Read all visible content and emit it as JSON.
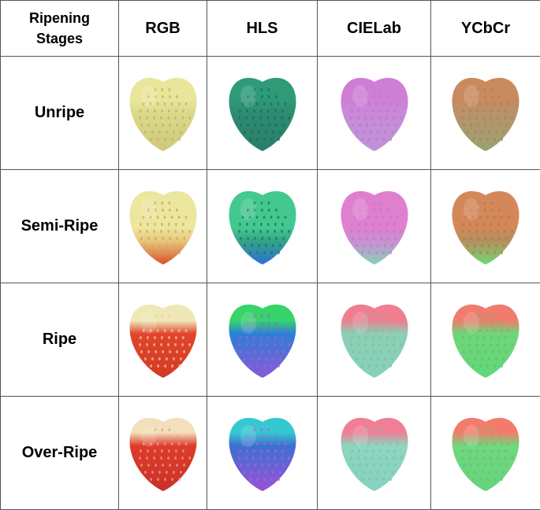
{
  "header": {
    "stage_line1": "Ripening",
    "stage_line2": "Stages",
    "columns": [
      "RGB",
      "HLS",
      "CIELab",
      "YCbCr"
    ]
  },
  "rows": [
    {
      "label": "Unripe",
      "swatches": [
        {
          "space": "RGB",
          "top": "#e9e69c",
          "mid": "#dcd98a",
          "bottom": "#cfc87a",
          "seed": "#b8b46a"
        },
        {
          "space": "HLS",
          "top": "#2e9a78",
          "mid": "#2c8c72",
          "bottom": "#2a7e6a",
          "seed": "#1f6b57"
        },
        {
          "space": "CIELab",
          "top": "#cf7ed6",
          "mid": "#c98ad7",
          "bottom": "#bf93d8",
          "seed": "#b27ccb"
        },
        {
          "space": "YCbCr",
          "top": "#c88a5e",
          "mid": "#b8926a",
          "bottom": "#9aa274",
          "seed": "#a9825a"
        }
      ]
    },
    {
      "label": "Semi-Ripe",
      "swatches": [
        {
          "space": "RGB",
          "top": "#ece69e",
          "mid": "#e8c67a",
          "bottom": "#d9502e",
          "seed": "#c9a766"
        },
        {
          "space": "HLS",
          "top": "#43c890",
          "mid": "#33a388",
          "bottom": "#2d6fd6",
          "seed": "#227358"
        },
        {
          "space": "CIELab",
          "top": "#e07fce",
          "mid": "#c88fd2",
          "bottom": "#86d1bb",
          "seed": "#b67fc2"
        },
        {
          "space": "YCbCr",
          "top": "#d4885a",
          "mid": "#b3905e",
          "bottom": "#6ed872",
          "seed": "#b07a50"
        }
      ]
    },
    {
      "label": "Ripe",
      "swatches": [
        {
          "space": "RGB",
          "top": "#efe8b6",
          "mid": "#e0452c",
          "bottom": "#d23b26",
          "seed": "#f0c89a"
        },
        {
          "space": "HLS",
          "top": "#36d46a",
          "mid": "#2b7fd8",
          "bottom": "#8a5ad6",
          "seed": "#b05ad8"
        },
        {
          "space": "CIELab",
          "top": "#ee7e90",
          "mid": "#8ccfb4",
          "bottom": "#86d1bd",
          "seed": "#7bbfa6"
        },
        {
          "space": "YCbCr",
          "top": "#ef7c6e",
          "mid": "#6fd678",
          "bottom": "#62d67b",
          "seed": "#58c46e"
        }
      ]
    },
    {
      "label": "Over-Ripe",
      "swatches": [
        {
          "space": "RGB",
          "top": "#f2e0bc",
          "mid": "#de3c2b",
          "bottom": "#c9302a",
          "seed": "#e7a088"
        },
        {
          "space": "HLS",
          "top": "#36c8d0",
          "mid": "#3a72d0",
          "bottom": "#9a52d8",
          "seed": "#b35ed9"
        },
        {
          "space": "CIELab",
          "top": "#f07e96",
          "mid": "#8fd4be",
          "bottom": "#86d2c1",
          "seed": "#7dc2ac"
        },
        {
          "space": "YCbCr",
          "top": "#f27c6c",
          "mid": "#72d67c",
          "bottom": "#66d480",
          "seed": "#5cc573"
        }
      ]
    }
  ]
}
